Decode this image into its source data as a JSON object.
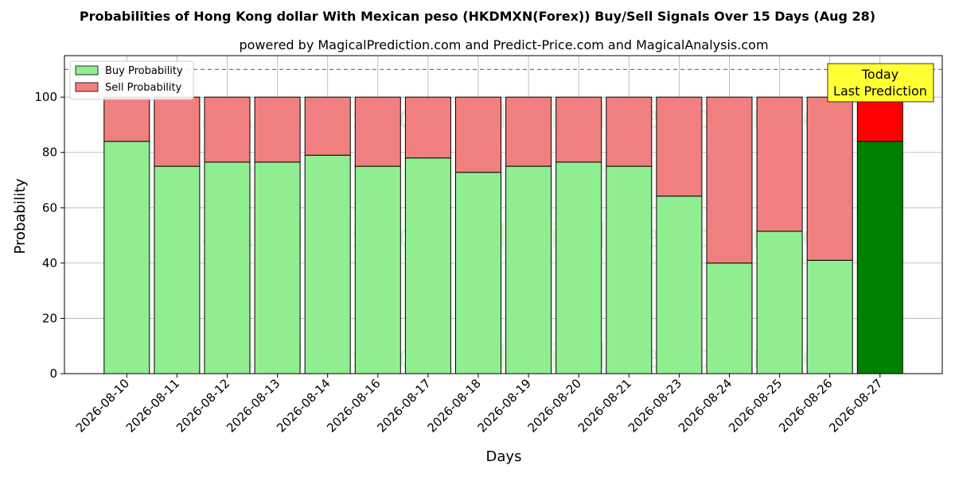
{
  "chart_data": {
    "type": "bar",
    "stacked": true,
    "title": "Probabilities of Hong Kong dollar With Mexican peso (HKDMXN(Forex)) Buy/Sell Signals Over 15 Days (Aug 28)",
    "subtitle": "powered by MagicalPrediction.com and Predict-Price.com and MagicalAnalysis.com",
    "xlabel": "Days",
    "ylabel": "Probability",
    "ylim": [
      0,
      115
    ],
    "yticks": [
      0,
      20,
      40,
      60,
      80,
      100
    ],
    "grid": true,
    "legend_position": "top-left",
    "reference_line": 110,
    "categories": [
      "2026-08-10",
      "2026-08-11",
      "2026-08-12",
      "2026-08-13",
      "2026-08-14",
      "2026-08-16",
      "2026-08-17",
      "2026-08-18",
      "2026-08-19",
      "2026-08-20",
      "2026-08-21",
      "2026-08-23",
      "2026-08-24",
      "2026-08-25",
      "2026-08-26",
      "2026-08-27"
    ],
    "series": [
      {
        "name": "Buy Probability",
        "color": "#90ee90",
        "highlight_color": "#008000",
        "values": [
          84,
          75,
          76.5,
          76.5,
          79,
          75,
          78,
          72.8,
          75,
          76.5,
          75,
          64.2,
          40,
          51.5,
          41,
          84
        ]
      },
      {
        "name": "Sell Probability",
        "color": "#f08080",
        "highlight_color": "#ff0000",
        "values": [
          16,
          25,
          23.5,
          23.5,
          21,
          25,
          22,
          27.2,
          25,
          23.5,
          25,
          35.8,
          60,
          48.5,
          59,
          16
        ]
      }
    ],
    "highlight_index": 15,
    "annotation": {
      "line1": "Today",
      "line2": "Last Prediction",
      "bg": "#ffff33"
    },
    "watermarks": [
      "MagicalAnalysis.com",
      "MagicalPrediction.com"
    ]
  }
}
